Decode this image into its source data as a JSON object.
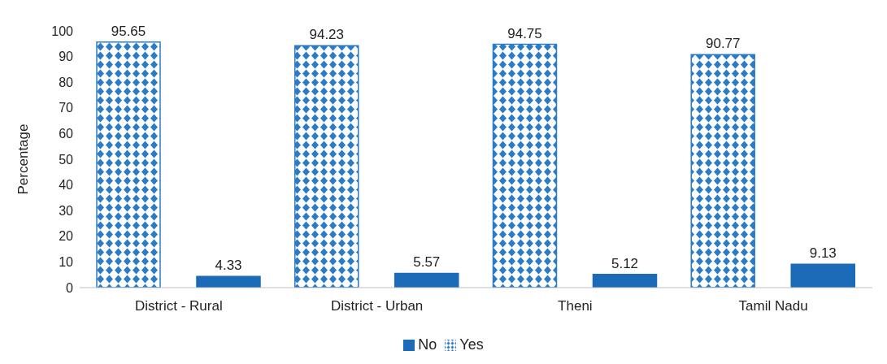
{
  "chart_data": {
    "type": "bar",
    "ylabel": "Percentage",
    "categories": [
      "District - Rural",
      "District - Urban",
      "Theni",
      "Tamil Nadu"
    ],
    "series": [
      {
        "name": "Yes",
        "color": "#2b7bc6",
        "values": [
          95.65,
          94.23,
          94.75,
          90.77
        ]
      },
      {
        "name": "No",
        "color": "#1b6bb8",
        "values": [
          4.33,
          5.57,
          5.12,
          9.13
        ]
      }
    ],
    "ylim": [
      0,
      100
    ],
    "yticks": [
      0,
      10,
      20,
      30,
      40,
      50,
      60,
      70,
      80,
      90,
      100
    ],
    "grid": false,
    "legend": "bottom",
    "data_labels": true
  }
}
